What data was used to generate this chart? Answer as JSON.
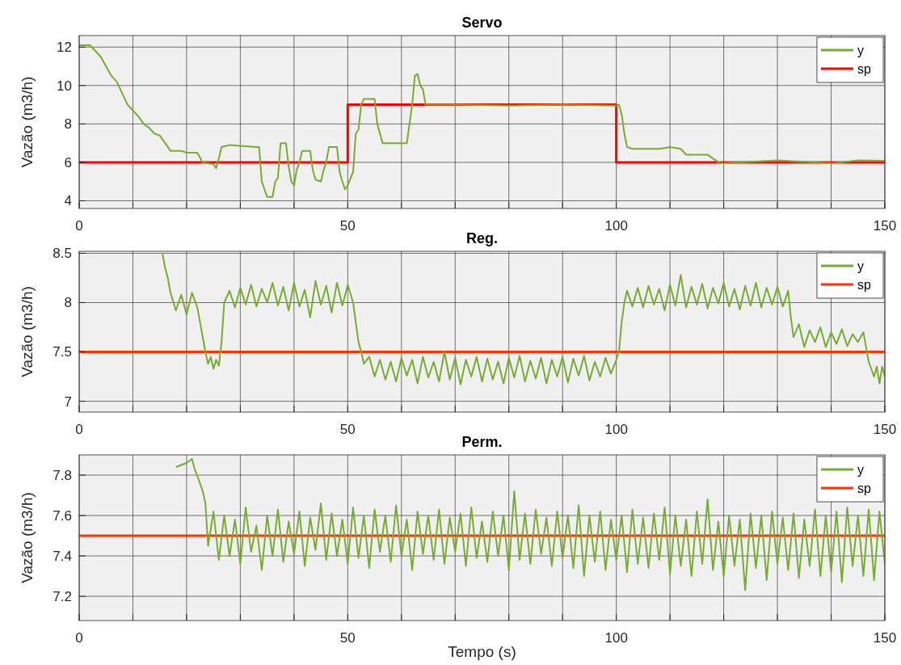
{
  "chart_data": [
    {
      "type": "line",
      "title": "Servo",
      "ylabel": "Vazão (m3/h)",
      "xlim": [
        0,
        150
      ],
      "ylim": [
        3.6,
        12.6
      ],
      "yticks": [
        4,
        6,
        8,
        10,
        12
      ],
      "xticks": [
        0,
        {
          "value": 10,
          "label": null
        },
        {
          "value": 20,
          "label": null
        },
        {
          "value": 30,
          "label": null
        },
        {
          "value": 40,
          "label": null
        },
        50,
        {
          "value": 60,
          "label": null
        },
        {
          "value": 70,
          "label": null
        },
        {
          "value": 80,
          "label": null
        },
        {
          "value": 90,
          "label": null
        },
        100,
        {
          "value": 110,
          "label": null
        },
        {
          "value": 120,
          "label": null
        },
        {
          "value": 130,
          "label": null
        },
        {
          "value": 140,
          "label": null
        },
        150
      ],
      "grid": true,
      "legend": "top right",
      "line_style": "solid",
      "marker": "none",
      "series": [
        {
          "name": "y",
          "color": "#77ac30",
          "x": [
            0,
            2,
            3,
            4,
            5,
            6,
            7,
            8,
            9,
            10,
            11,
            12,
            13,
            14,
            15,
            16,
            17,
            19,
            20,
            22,
            23,
            25,
            25.5,
            26,
            26.5,
            28,
            33,
            33.5,
            34,
            35,
            36,
            36.5,
            37,
            37.5,
            38.5,
            39,
            39.5,
            40,
            40.5,
            41,
            41.5,
            43,
            43.5,
            44,
            45,
            45.5,
            46,
            46.5,
            48,
            48.5,
            49,
            49.5,
            50,
            51,
            51.5,
            52,
            52.5,
            53,
            55,
            55.5,
            56,
            56.5,
            61,
            61.5,
            62,
            62.5,
            63,
            63.5,
            64,
            64.5,
            70,
            80,
            90,
            100,
            100.5,
            101,
            101.5,
            102,
            103,
            108,
            110,
            112,
            113,
            117,
            118,
            119,
            120,
            130,
            140,
            145,
            150
          ],
          "values": [
            12.1,
            12.1,
            11.8,
            11.5,
            11.0,
            10.5,
            10.2,
            9.6,
            9.0,
            8.7,
            8.4,
            8.0,
            7.8,
            7.5,
            7.4,
            7.0,
            6.6,
            6.6,
            6.5,
            6.5,
            6.0,
            5.9,
            5.7,
            6.2,
            6.8,
            6.9,
            6.8,
            6.8,
            5.0,
            4.2,
            4.2,
            5.0,
            5.2,
            7.0,
            7.0,
            5.8,
            5.0,
            4.8,
            5.6,
            6.0,
            6.6,
            6.6,
            5.6,
            5.1,
            5.0,
            5.6,
            6.0,
            6.8,
            6.8,
            5.5,
            5.0,
            4.6,
            4.8,
            5.5,
            7.5,
            7.7,
            9.0,
            9.3,
            9.3,
            8.0,
            7.5,
            7.0,
            7.0,
            8.0,
            9.0,
            10.5,
            10.6,
            10.0,
            9.8,
            9.0,
            9.0,
            8.95,
            9.0,
            8.95,
            9.0,
            8.5,
            7.5,
            6.8,
            6.7,
            6.7,
            6.8,
            6.7,
            6.4,
            6.4,
            6.2,
            6.0,
            5.95,
            6.1,
            5.95,
            6.1,
            6.08
          ]
        },
        {
          "name": "sp",
          "color": "#ff0000",
          "x": [
            0,
            50,
            50,
            100,
            100,
            150
          ],
          "values": [
            6,
            6,
            9,
            9,
            6,
            6
          ]
        }
      ]
    },
    {
      "type": "line",
      "title": "Reg.",
      "ylabel": "Vazão (m3/h)",
      "xlim": [
        0,
        150
      ],
      "ylim": [
        6.89,
        8.52
      ],
      "yticks": [
        7,
        7.5,
        8,
        8.5
      ],
      "xticks": [
        0,
        {
          "value": 10,
          "label": null
        },
        {
          "value": 20,
          "label": null
        },
        {
          "value": 30,
          "label": null
        },
        {
          "value": 40,
          "label": null
        },
        50,
        {
          "value": 60,
          "label": null
        },
        {
          "value": 70,
          "label": null
        },
        {
          "value": 80,
          "label": null
        },
        {
          "value": 90,
          "label": null
        },
        100,
        {
          "value": 110,
          "label": null
        },
        {
          "value": 120,
          "label": null
        },
        {
          "value": 130,
          "label": null
        },
        {
          "value": 140,
          "label": null
        },
        150
      ],
      "grid": true,
      "legend": "top right",
      "line_style": "solid",
      "marker": "none",
      "series": [
        {
          "name": "y",
          "color": "#77ac30",
          "x": [
            15.5,
            16,
            16.5,
            17,
            18,
            19,
            20,
            21,
            22,
            22.5,
            23,
            23.5,
            24,
            24.5,
            25,
            25.5,
            26,
            26.5,
            27,
            28,
            29,
            30,
            31,
            32,
            33,
            34,
            35,
            36,
            37,
            38,
            39,
            40,
            41,
            42,
            43,
            44,
            45,
            46,
            47,
            48,
            49,
            50,
            51,
            51.5,
            52,
            52.5,
            53,
            54,
            55,
            56,
            57,
            58,
            59,
            60,
            61,
            62,
            63,
            64,
            65,
            66,
            67,
            68,
            69,
            70,
            71,
            72,
            73,
            74,
            75,
            76,
            77,
            78,
            79,
            80,
            81,
            82,
            83,
            84,
            85,
            86,
            87,
            88,
            89,
            90,
            91,
            92,
            93,
            94,
            95,
            96,
            97,
            98,
            99,
            100,
            100.5,
            101,
            101.5,
            102,
            103,
            104,
            105,
            106,
            107,
            108,
            109,
            110,
            111,
            112,
            113,
            114,
            115,
            116,
            117,
            118,
            119,
            120,
            121,
            122,
            123,
            124,
            125,
            126,
            127,
            128,
            129,
            130,
            131,
            132,
            132.5,
            133,
            134,
            135,
            136,
            137,
            138,
            139,
            140,
            141,
            142,
            143,
            144,
            145,
            146,
            146.5,
            147,
            148,
            148.5,
            149,
            149.5,
            150
          ],
          "values": [
            8.5,
            8.35,
            8.25,
            8.1,
            7.92,
            8.08,
            7.88,
            8.1,
            7.95,
            7.8,
            7.65,
            7.5,
            7.38,
            7.45,
            7.33,
            7.42,
            7.36,
            7.6,
            8.0,
            8.12,
            7.95,
            8.15,
            7.98,
            8.18,
            7.96,
            8.14,
            8.0,
            8.2,
            7.97,
            8.16,
            7.92,
            8.2,
            7.96,
            8.13,
            7.85,
            8.22,
            7.98,
            8.17,
            7.9,
            8.2,
            7.97,
            8.18,
            8.0,
            7.8,
            7.6,
            7.5,
            7.38,
            7.45,
            7.25,
            7.42,
            7.22,
            7.4,
            7.2,
            7.44,
            7.26,
            7.42,
            7.18,
            7.45,
            7.24,
            7.4,
            7.2,
            7.5,
            7.22,
            7.44,
            7.17,
            7.42,
            7.25,
            7.45,
            7.2,
            7.43,
            7.22,
            7.4,
            7.18,
            7.44,
            7.24,
            7.46,
            7.2,
            7.41,
            7.23,
            7.44,
            7.18,
            7.42,
            7.25,
            7.45,
            7.19,
            7.43,
            7.26,
            7.46,
            7.21,
            7.4,
            7.25,
            7.44,
            7.28,
            7.42,
            7.5,
            7.8,
            8.0,
            8.12,
            7.96,
            8.15,
            7.95,
            8.17,
            7.98,
            8.14,
            7.92,
            8.18,
            7.97,
            8.28,
            7.95,
            8.16,
            7.98,
            8.19,
            7.94,
            8.15,
            7.99,
            8.2,
            7.96,
            8.14,
            7.93,
            8.17,
            7.97,
            8.2,
            7.95,
            8.15,
            7.98,
            8.16,
            7.96,
            8.12,
            7.85,
            7.65,
            7.78,
            7.55,
            7.72,
            7.6,
            7.75,
            7.55,
            7.7,
            7.58,
            7.73,
            7.56,
            7.68,
            7.6,
            7.7,
            7.55,
            7.4,
            7.25,
            7.35,
            7.18,
            7.35,
            7.25
          ]
        },
        {
          "name": "sp",
          "color": "#ff3300",
          "x": [
            0,
            150
          ],
          "values": [
            7.5,
            7.5
          ]
        }
      ]
    },
    {
      "type": "line",
      "title": "Perm.",
      "ylabel": "Vazão (m3/h)",
      "xlabel": "Tempo (s)",
      "xlim": [
        0,
        150
      ],
      "ylim": [
        7.08,
        7.9
      ],
      "yticks": [
        7.2,
        7.4,
        7.6,
        7.8
      ],
      "xticks": [
        0,
        {
          "value": 10,
          "label": null
        },
        {
          "value": 20,
          "label": null
        },
        {
          "value": 30,
          "label": null
        },
        {
          "value": 40,
          "label": null
        },
        50,
        {
          "value": 60,
          "label": null
        },
        {
          "value": 70,
          "label": null
        },
        {
          "value": 80,
          "label": null
        },
        {
          "value": 90,
          "label": null
        },
        100,
        {
          "value": 110,
          "label": null
        },
        {
          "value": 120,
          "label": null
        },
        {
          "value": 130,
          "label": null
        },
        {
          "value": 140,
          "label": null
        },
        150
      ],
      "grid": true,
      "legend": "top right",
      "line_style": "solid",
      "marker": "none",
      "series": [
        {
          "name": "y",
          "color": "#77ac30",
          "x": [
            18,
            19,
            20,
            21,
            21.5,
            22.5,
            23,
            23.5,
            24,
            25,
            26,
            27,
            28,
            29,
            30,
            31,
            32,
            33,
            34,
            35,
            36,
            37,
            38,
            39,
            40,
            41,
            42,
            43,
            44,
            45,
            46,
            47,
            48,
            49,
            50,
            51,
            52,
            53,
            54,
            55,
            56,
            57,
            58,
            59,
            60,
            61,
            62,
            63,
            64,
            65,
            66,
            67,
            68,
            69,
            70,
            71,
            72,
            73,
            74,
            75,
            76,
            77,
            78,
            79,
            80,
            81,
            82,
            83,
            84,
            85,
            86,
            87,
            88,
            89,
            90,
            91,
            92,
            93,
            94,
            95,
            96,
            97,
            98,
            99,
            100,
            101,
            102,
            103,
            104,
            105,
            106,
            107,
            108,
            109,
            110,
            111,
            112,
            113,
            114,
            115,
            116,
            117,
            118,
            119,
            120,
            121,
            122,
            123,
            124,
            125,
            126,
            127,
            128,
            129,
            130,
            131,
            132,
            133,
            134,
            135,
            136,
            137,
            138,
            139,
            140,
            141,
            142,
            143,
            144,
            145,
            146,
            147,
            148,
            149,
            150
          ],
          "values": [
            7.84,
            7.85,
            7.86,
            7.88,
            7.83,
            7.76,
            7.72,
            7.66,
            7.45,
            7.62,
            7.38,
            7.6,
            7.4,
            7.58,
            7.36,
            7.64,
            7.42,
            7.55,
            7.33,
            7.6,
            7.4,
            7.63,
            7.37,
            7.57,
            7.41,
            7.62,
            7.35,
            7.59,
            7.43,
            7.66,
            7.38,
            7.61,
            7.4,
            7.58,
            7.36,
            7.64,
            7.39,
            7.6,
            7.34,
            7.63,
            7.42,
            7.6,
            7.37,
            7.65,
            7.4,
            7.58,
            7.33,
            7.62,
            7.41,
            7.6,
            7.38,
            7.63,
            7.36,
            7.59,
            7.42,
            7.61,
            7.35,
            7.64,
            7.39,
            7.57,
            7.37,
            7.62,
            7.4,
            7.6,
            7.33,
            7.72,
            7.38,
            7.61,
            7.36,
            7.63,
            7.41,
            7.59,
            7.35,
            7.62,
            7.39,
            7.6,
            7.34,
            7.65,
            7.3,
            7.6,
            7.37,
            7.62,
            7.33,
            7.58,
            7.38,
            7.6,
            7.32,
            7.63,
            7.36,
            7.59,
            7.34,
            7.61,
            7.38,
            7.64,
            7.31,
            7.6,
            7.35,
            7.58,
            7.3,
            7.62,
            7.36,
            7.68,
            7.33,
            7.57,
            7.3,
            7.6,
            7.35,
            7.58,
            7.23,
            7.61,
            7.34,
            7.6,
            7.28,
            7.62,
            7.36,
            7.59,
            7.33,
            7.61,
            7.29,
            7.58,
            7.35,
            7.63,
            7.3,
            7.6,
            7.32,
            7.62,
            7.27,
            7.64,
            7.35,
            7.6,
            7.3,
            7.63,
            7.28,
            7.62,
            7.36
          ]
        },
        {
          "name": "sp",
          "color": "#ff3300",
          "x": [
            0,
            150
          ],
          "values": [
            7.5,
            7.5
          ]
        }
      ]
    }
  ]
}
